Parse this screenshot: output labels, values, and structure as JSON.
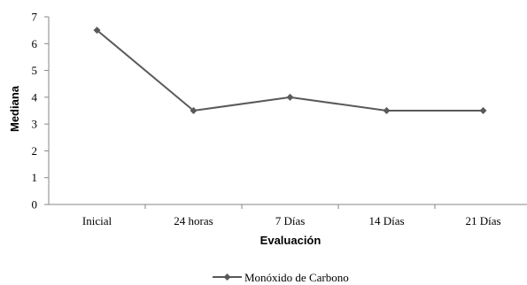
{
  "chart_data": {
    "type": "line",
    "title": "",
    "xlabel": "Evaluación",
    "ylabel": "Mediana",
    "categories": [
      "Inicial",
      "24 horas",
      "7 Días",
      "14 Días",
      "21 Días"
    ],
    "series": [
      {
        "name": "Monóxido de Carbono",
        "values": [
          6.5,
          3.5,
          4.0,
          3.5,
          3.5
        ],
        "color": "#595959",
        "marker": "diamond"
      }
    ],
    "ylim": [
      0,
      7
    ],
    "yticks": [
      0,
      1,
      2,
      3,
      4,
      5,
      6,
      7
    ],
    "grid": false,
    "legend_position": "bottom"
  }
}
